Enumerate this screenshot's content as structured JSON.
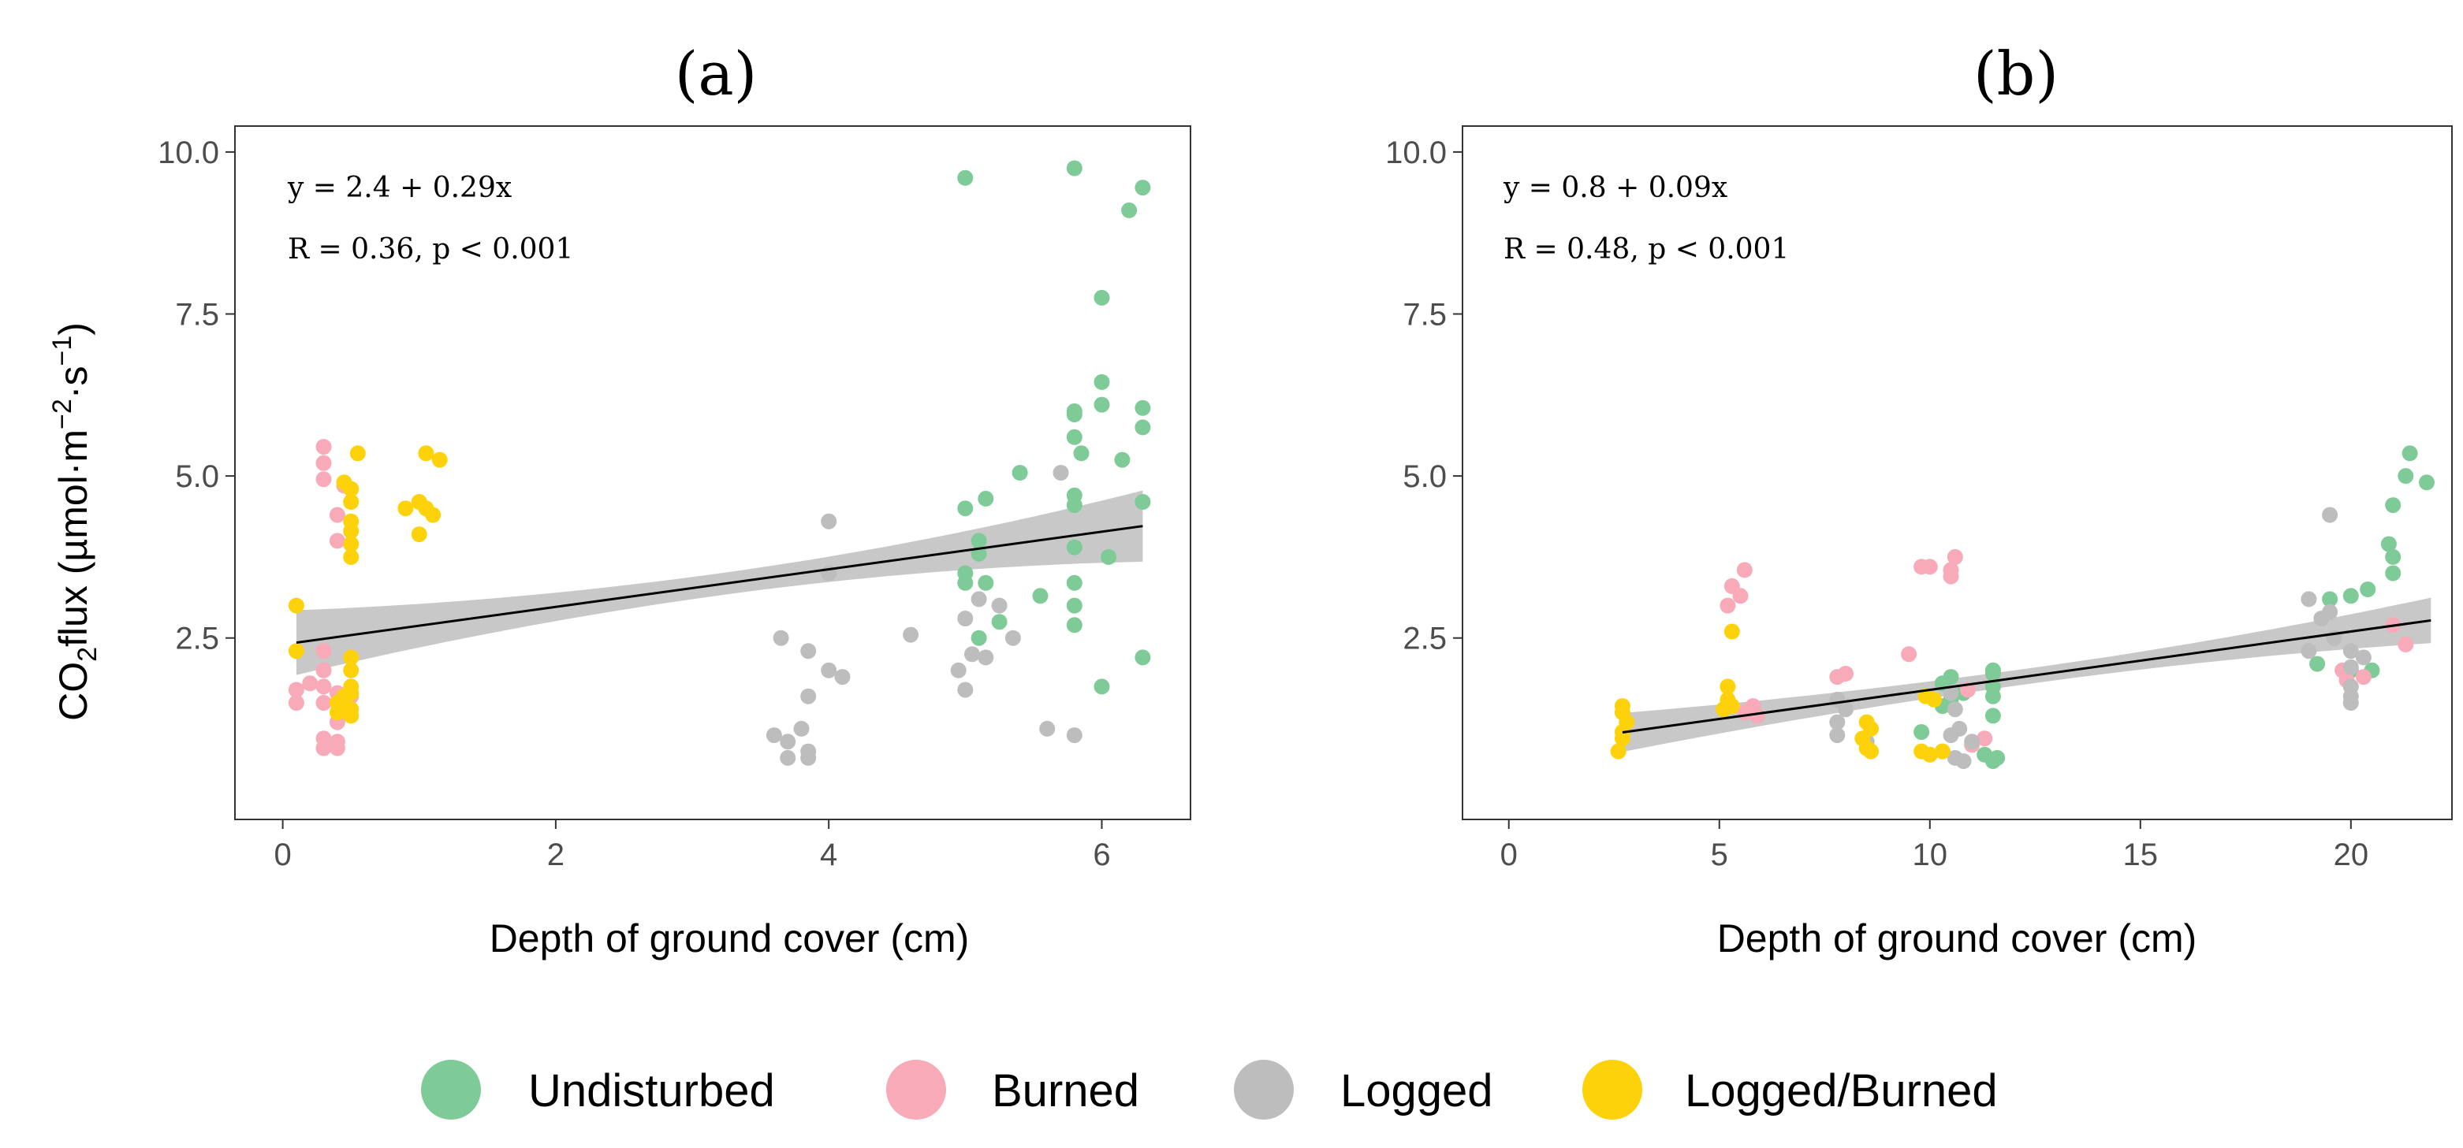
{
  "colors": {
    "Undisturbed": "#7fcb97",
    "Burned": "#f8aab8",
    "Logged": "#bdbdbd",
    "Logged/Burned": "#fdd20a",
    "fit_line": "#000000",
    "ci_band": "#c8c8c8"
  },
  "legend": {
    "position": "bottom",
    "items": [
      {
        "label": "Undisturbed",
        "color_key": "Undisturbed"
      },
      {
        "label": "Burned",
        "color_key": "Burned"
      },
      {
        "label": "Logged",
        "color_key": "Logged"
      },
      {
        "label": "Logged/Burned",
        "color_key": "Logged/Burned"
      }
    ]
  },
  "y_axis_title": {
    "prefix": "CO",
    "sub": "2",
    "mid": "flux (µmol·m",
    "sup1": "−2",
    "mid2": "·s",
    "sup2": "−1",
    "suffix": ")"
  },
  "chart_data": [
    {
      "type": "scatter",
      "panel_label": "(a)",
      "xlabel": "Depth of ground cover (cm)",
      "ylabel": "CO2flux (µmol·m−2·s−1)",
      "xlim": [
        -0.35,
        6.65
      ],
      "ylim": [
        -0.3,
        10.4
      ],
      "xticks": [
        0,
        2,
        4,
        6
      ],
      "xtick_labels": [
        "0",
        "2",
        "4",
        "6"
      ],
      "yticks": [
        2.5,
        5.0,
        7.5,
        10.0
      ],
      "ytick_labels": [
        "2.5",
        "5.0",
        "7.5",
        "10.0"
      ],
      "grid": false,
      "equation": "y = 2.4 + 0.29x",
      "stats": "R = 0.36, p < 0.001",
      "fit": {
        "intercept": 2.4,
        "slope": 0.29,
        "x_range": [
          0.1,
          6.3
        ],
        "ci_halfwidth_ends": [
          0.5,
          0.55
        ],
        "ci_halfwidth_mid": 0.17
      },
      "series": [
        {
          "name": "Undisturbed",
          "color_key": "Undisturbed",
          "points": [
            [
              5.0,
              9.6
            ],
            [
              5.8,
              9.75
            ],
            [
              6.3,
              9.45
            ],
            [
              6.2,
              9.1
            ],
            [
              6.0,
              7.75
            ],
            [
              6.0,
              6.45
            ],
            [
              6.3,
              6.05
            ],
            [
              5.8,
              6.0
            ],
            [
              6.0,
              6.1
            ],
            [
              5.8,
              5.95
            ],
            [
              5.8,
              5.6
            ],
            [
              6.3,
              5.75
            ],
            [
              5.85,
              5.35
            ],
            [
              6.15,
              5.25
            ],
            [
              5.4,
              5.05
            ],
            [
              5.15,
              4.65
            ],
            [
              5.0,
              4.5
            ],
            [
              5.8,
              4.7
            ],
            [
              5.8,
              4.55
            ],
            [
              6.3,
              4.6
            ],
            [
              5.1,
              4.0
            ],
            [
              5.1,
              3.8
            ],
            [
              5.8,
              3.9
            ],
            [
              6.05,
              3.75
            ],
            [
              5.0,
              3.5
            ],
            [
              5.0,
              3.35
            ],
            [
              5.15,
              3.35
            ],
            [
              5.55,
              3.15
            ],
            [
              5.8,
              3.35
            ],
            [
              5.8,
              3.0
            ],
            [
              5.8,
              2.7
            ],
            [
              5.25,
              2.75
            ],
            [
              5.1,
              2.5
            ],
            [
              6.3,
              2.2
            ],
            [
              6.0,
              1.75
            ]
          ]
        },
        {
          "name": "Burned",
          "color_key": "Burned",
          "points": [
            [
              0.3,
              5.45
            ],
            [
              0.3,
              5.2
            ],
            [
              0.3,
              4.95
            ],
            [
              0.45,
              4.85
            ],
            [
              0.4,
              4.4
            ],
            [
              0.4,
              4.0
            ],
            [
              0.3,
              2.3
            ],
            [
              0.3,
              2.0
            ],
            [
              0.2,
              1.8
            ],
            [
              0.3,
              1.75
            ],
            [
              0.1,
              1.7
            ],
            [
              0.4,
              1.65
            ],
            [
              0.5,
              1.6
            ],
            [
              0.1,
              1.5
            ],
            [
              0.3,
              1.5
            ],
            [
              0.4,
              1.2
            ],
            [
              0.3,
              0.95
            ],
            [
              0.4,
              0.9
            ],
            [
              0.3,
              0.8
            ],
            [
              0.4,
              0.8
            ]
          ]
        },
        {
          "name": "Logged",
          "color_key": "Logged",
          "points": [
            [
              4.0,
              4.3
            ],
            [
              4.0,
              3.5
            ],
            [
              4.6,
              2.55
            ],
            [
              3.65,
              2.5
            ],
            [
              3.85,
              2.3
            ],
            [
              4.0,
              2.0
            ],
            [
              4.1,
              1.9
            ],
            [
              3.85,
              1.6
            ],
            [
              3.8,
              1.1
            ],
            [
              3.6,
              1.0
            ],
            [
              3.7,
              0.9
            ],
            [
              3.85,
              0.75
            ],
            [
              3.7,
              0.65
            ],
            [
              3.85,
              0.65
            ],
            [
              5.7,
              5.05
            ],
            [
              5.0,
              2.8
            ],
            [
              5.25,
              3.0
            ],
            [
              5.1,
              3.1
            ],
            [
              5.35,
              2.5
            ],
            [
              5.05,
              2.25
            ],
            [
              5.15,
              2.2
            ],
            [
              4.95,
              2.0
            ],
            [
              5.0,
              1.7
            ],
            [
              5.6,
              1.1
            ],
            [
              5.8,
              1.0
            ]
          ]
        },
        {
          "name": "Logged/Burned",
          "color_key": "Logged/Burned",
          "points": [
            [
              0.55,
              5.35
            ],
            [
              0.45,
              4.9
            ],
            [
              0.5,
              4.8
            ],
            [
              0.5,
              4.6
            ],
            [
              0.5,
              4.3
            ],
            [
              0.5,
              4.15
            ],
            [
              0.5,
              3.95
            ],
            [
              0.5,
              3.75
            ],
            [
              1.05,
              5.35
            ],
            [
              1.15,
              5.25
            ],
            [
              1.0,
              4.6
            ],
            [
              1.05,
              4.5
            ],
            [
              0.9,
              4.5
            ],
            [
              1.1,
              4.4
            ],
            [
              1.0,
              4.1
            ],
            [
              0.1,
              3.0
            ],
            [
              0.1,
              2.3
            ],
            [
              0.5,
              2.2
            ],
            [
              0.5,
              2.0
            ],
            [
              0.5,
              1.75
            ],
            [
              0.5,
              1.65
            ],
            [
              0.45,
              1.6
            ],
            [
              0.4,
              1.5
            ],
            [
              0.5,
              1.4
            ],
            [
              0.4,
              1.35
            ],
            [
              0.5,
              1.3
            ]
          ]
        }
      ]
    },
    {
      "type": "scatter",
      "panel_label": "(b)",
      "xlabel": "Depth of ground cover (cm)",
      "ylabel": "CO2flux (µmol·m−2·s−1)",
      "xlim": [
        -1.1,
        22.4
      ],
      "ylim": [
        -0.3,
        10.4
      ],
      "xticks": [
        0,
        5,
        10,
        15,
        20
      ],
      "xtick_labels": [
        "0",
        "5",
        "10",
        "15",
        "20"
      ],
      "yticks": [
        2.5,
        5.0,
        7.5,
        10.0
      ],
      "ytick_labels": [
        "2.5",
        "5.0",
        "7.5",
        "10.0"
      ],
      "grid": false,
      "equation": "y = 0.8 + 0.09x",
      "stats": "R = 0.48, p < 0.001",
      "fit": {
        "intercept": 0.8,
        "slope": 0.09,
        "x_range": [
          2.7,
          21.9
        ],
        "ci_halfwidth_ends": [
          0.3,
          0.35
        ],
        "ci_halfwidth_mid": 0.12
      },
      "series": [
        {
          "name": "Undisturbed",
          "color_key": "Undisturbed",
          "points": [
            [
              21.4,
              5.35
            ],
            [
              21.3,
              5.0
            ],
            [
              21.8,
              4.9
            ],
            [
              21.0,
              4.55
            ],
            [
              20.9,
              3.95
            ],
            [
              21.0,
              3.75
            ],
            [
              21.0,
              3.5
            ],
            [
              20.4,
              3.25
            ],
            [
              20.0,
              3.15
            ],
            [
              19.5,
              3.1
            ],
            [
              19.2,
              2.1
            ],
            [
              20.0,
              2.0
            ],
            [
              20.5,
              2.0
            ],
            [
              11.5,
              2.0
            ],
            [
              11.5,
              1.95
            ],
            [
              11.5,
              1.75
            ],
            [
              11.5,
              1.6
            ],
            [
              11.5,
              1.3
            ],
            [
              10.5,
              1.9
            ],
            [
              10.3,
              1.8
            ],
            [
              10.8,
              1.65
            ],
            [
              10.5,
              1.55
            ],
            [
              10.3,
              1.45
            ],
            [
              9.8,
              1.05
            ],
            [
              11.3,
              0.7
            ],
            [
              11.5,
              0.6
            ],
            [
              11.6,
              0.65
            ]
          ]
        },
        {
          "name": "Burned",
          "color_key": "Burned",
          "points": [
            [
              5.6,
              3.55
            ],
            [
              5.3,
              3.3
            ],
            [
              5.5,
              3.15
            ],
            [
              5.2,
              3.0
            ],
            [
              5.8,
              1.45
            ],
            [
              5.9,
              1.3
            ],
            [
              5.6,
              1.35
            ],
            [
              8.0,
              1.95
            ],
            [
              7.8,
              1.9
            ],
            [
              9.5,
              2.25
            ],
            [
              9.8,
              3.6
            ],
            [
              10.0,
              3.6
            ],
            [
              10.6,
              3.75
            ],
            [
              10.5,
              3.55
            ],
            [
              10.5,
              3.45
            ],
            [
              10.9,
              1.7
            ],
            [
              11.3,
              0.95
            ],
            [
              11.0,
              0.85
            ],
            [
              19.8,
              2.0
            ],
            [
              19.9,
              1.85
            ],
            [
              21.0,
              2.7
            ],
            [
              21.3,
              2.4
            ],
            [
              20.3,
              1.9
            ]
          ]
        },
        {
          "name": "Logged",
          "color_key": "Logged",
          "points": [
            [
              19.5,
              4.4
            ],
            [
              19.0,
              3.1
            ],
            [
              19.5,
              2.9
            ],
            [
              19.3,
              2.8
            ],
            [
              19.6,
              2.5
            ],
            [
              19.0,
              2.3
            ],
            [
              20.0,
              2.3
            ],
            [
              20.3,
              2.2
            ],
            [
              20.0,
              2.05
            ],
            [
              20.0,
              1.75
            ],
            [
              20.0,
              1.6
            ],
            [
              20.0,
              1.5
            ],
            [
              7.8,
              1.55
            ],
            [
              8.0,
              1.4
            ],
            [
              7.8,
              1.2
            ],
            [
              7.8,
              1.0
            ],
            [
              8.5,
              0.9
            ],
            [
              10.5,
              1.65
            ],
            [
              10.6,
              1.4
            ],
            [
              10.7,
              1.1
            ],
            [
              10.5,
              1.0
            ],
            [
              10.3,
              0.75
            ],
            [
              10.6,
              0.65
            ],
            [
              10.8,
              0.6
            ],
            [
              11.0,
              0.9
            ]
          ]
        },
        {
          "name": "Logged/Burned",
          "color_key": "Logged/Burned",
          "points": [
            [
              2.7,
              1.45
            ],
            [
              2.7,
              1.35
            ],
            [
              2.8,
              1.2
            ],
            [
              2.7,
              1.05
            ],
            [
              2.7,
              0.95
            ],
            [
              2.6,
              0.75
            ],
            [
              5.3,
              2.6
            ],
            [
              5.2,
              1.75
            ],
            [
              5.2,
              1.55
            ],
            [
              5.3,
              1.45
            ],
            [
              5.1,
              1.4
            ],
            [
              8.5,
              1.2
            ],
            [
              8.6,
              1.1
            ],
            [
              8.4,
              0.95
            ],
            [
              8.5,
              0.8
            ],
            [
              8.6,
              0.75
            ],
            [
              9.9,
              1.6
            ],
            [
              10.1,
              1.55
            ],
            [
              9.8,
              0.75
            ],
            [
              10.0,
              0.7
            ],
            [
              10.3,
              0.75
            ]
          ]
        }
      ]
    }
  ]
}
